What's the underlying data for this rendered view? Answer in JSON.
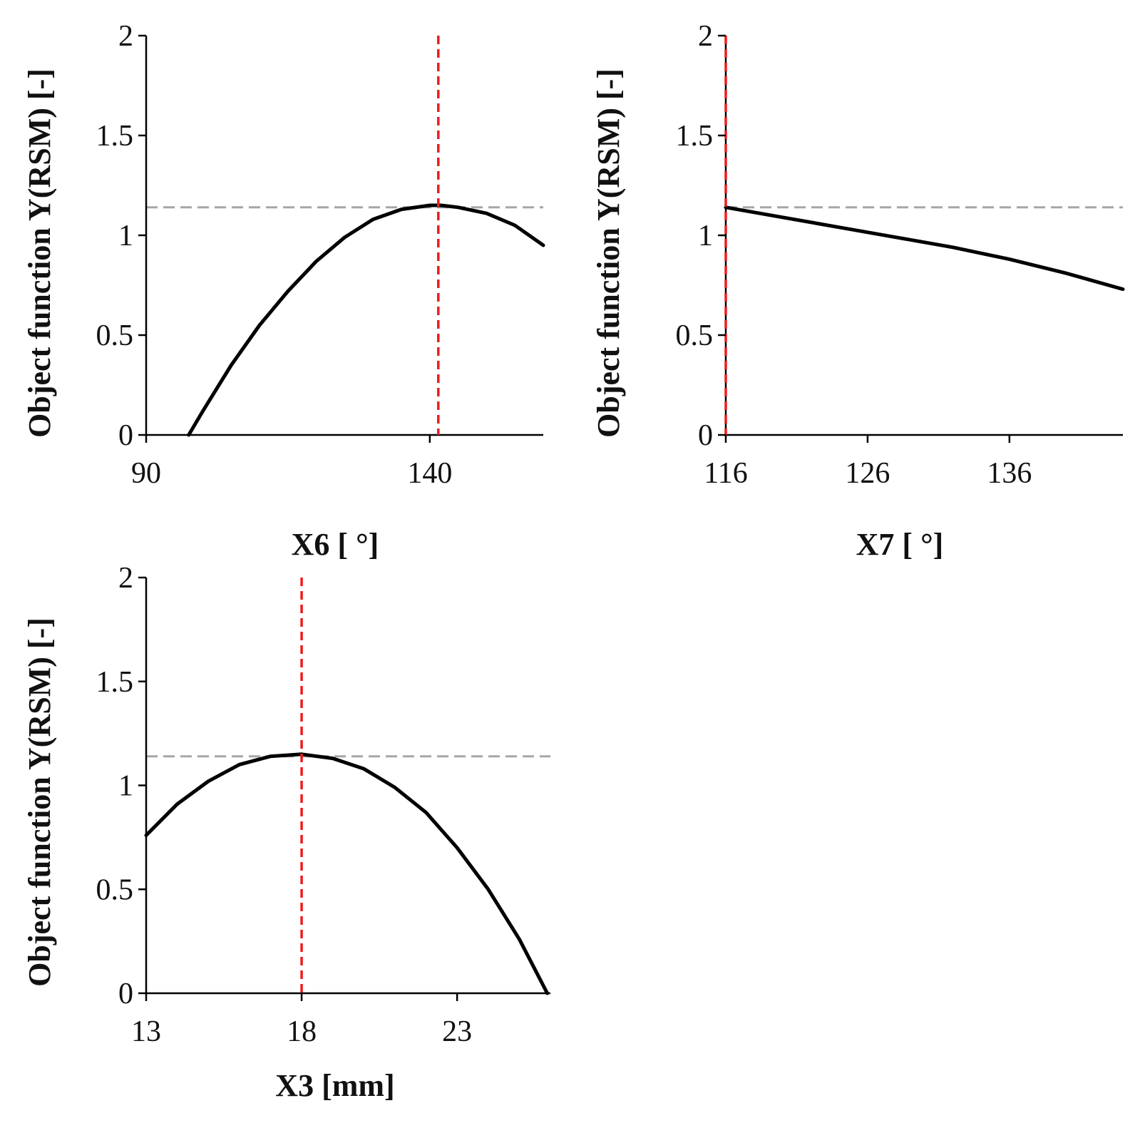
{
  "figure": {
    "colors": {
      "curve": "#000000",
      "axis": "#000000",
      "optimum_line": "#ee1c1c",
      "reference_line": "#a6a6a6",
      "text": "#111111"
    }
  },
  "chart_data": [
    {
      "id": "x6",
      "type": "line",
      "title": "",
      "xlabel": "X6 [ °]",
      "ylabel": "Object function  Y(RSM) [-]",
      "xlim": [
        90,
        160
      ],
      "ylim": [
        0,
        2
      ],
      "x_ticks": [
        90,
        140
      ],
      "y_ticks": [
        0,
        0.5,
        1,
        1.5,
        2
      ],
      "x_tick_labels": [
        "90",
        "140"
      ],
      "y_tick_labels": [
        "0",
        "0.5",
        "1",
        "1.5",
        "2"
      ],
      "grid": false,
      "series": [
        {
          "x": [
            97.5,
            100,
            105,
            110,
            115,
            120,
            125,
            130,
            135,
            140,
            142,
            145,
            150,
            155,
            160
          ],
          "y": [
            0,
            0.12,
            0.35,
            0.55,
            0.72,
            0.87,
            0.99,
            1.08,
            1.13,
            1.15,
            1.15,
            1.14,
            1.11,
            1.05,
            0.95
          ]
        }
      ],
      "optimum_x": 141.5,
      "reference_y": 1.14
    },
    {
      "id": "x7",
      "type": "line",
      "title": "",
      "xlabel": "X7 [ °]",
      "ylabel": "Object function  Y(RSM) [-]",
      "xlim": [
        116,
        144
      ],
      "ylim": [
        0,
        2
      ],
      "x_ticks": [
        116,
        126,
        136
      ],
      "y_ticks": [
        0,
        0.5,
        1,
        1.5,
        2
      ],
      "x_tick_labels": [
        "116",
        "126",
        "136"
      ],
      "y_tick_labels": [
        "0",
        "0.5",
        "1",
        "1.5",
        "2"
      ],
      "grid": false,
      "series": [
        {
          "x": [
            116,
            120,
            124,
            128,
            132,
            136,
            140,
            144
          ],
          "y": [
            1.14,
            1.09,
            1.04,
            0.99,
            0.94,
            0.88,
            0.81,
            0.73
          ]
        }
      ],
      "optimum_x": 116,
      "reference_y": 1.14
    },
    {
      "id": "x3",
      "type": "line",
      "title": "",
      "xlabel": "X3 [mm]",
      "ylabel": "Object function  Y(RSM) [-]",
      "xlim": [
        13,
        26
      ],
      "ylim": [
        0,
        2
      ],
      "x_ticks": [
        13,
        18,
        23
      ],
      "y_ticks": [
        0,
        0.5,
        1,
        1.5,
        2
      ],
      "x_tick_labels": [
        "13",
        "18",
        "23"
      ],
      "y_tick_labels": [
        "0",
        "0.5",
        "1",
        "1.5",
        "2"
      ],
      "grid": false,
      "series": [
        {
          "x": [
            13,
            14,
            15,
            16,
            17,
            18,
            19,
            20,
            21,
            22,
            23,
            24,
            25,
            25.9
          ],
          "y": [
            0.76,
            0.91,
            1.02,
            1.1,
            1.14,
            1.15,
            1.13,
            1.08,
            0.99,
            0.87,
            0.7,
            0.5,
            0.26,
            0
          ]
        }
      ],
      "optimum_x": 18,
      "reference_y": 1.14
    }
  ]
}
